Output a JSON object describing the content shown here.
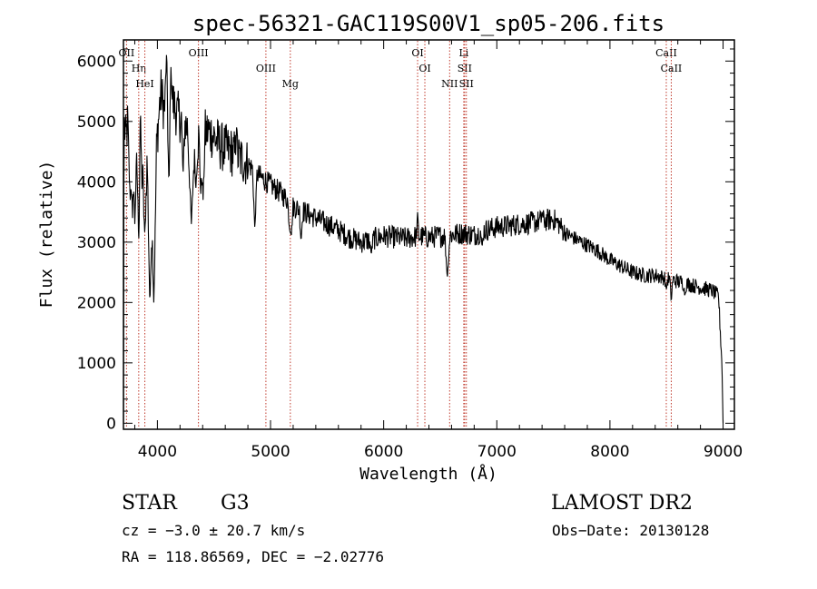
{
  "chart_data": {
    "type": "line",
    "title": "spec-56321-GAC119S00V1_sp05-206.fits",
    "xlabel": "Wavelength (Å)",
    "ylabel": "Flux (relative)",
    "xlim": [
      3700,
      9100
    ],
    "ylim": [
      -100,
      6350
    ],
    "x_ticks": [
      4000,
      5000,
      6000,
      7000,
      8000,
      9000
    ],
    "x_tick_labels": [
      "4000",
      "5000",
      "6000",
      "7000",
      "8000",
      "9000"
    ],
    "y_ticks": [
      0,
      1000,
      2000,
      3000,
      4000,
      5000,
      6000
    ],
    "y_tick_labels": [
      "0",
      "1000",
      "2000",
      "3000",
      "4000",
      "5000",
      "6000"
    ],
    "grid": false,
    "line_color": "#000000",
    "marker_color": "#c0392b",
    "spectral_lines": [
      {
        "label": "OII",
        "x": 3727
      },
      {
        "label": "Hη",
        "x": 3835
      },
      {
        "label": "HeI",
        "x": 3889
      },
      {
        "label": "OIII",
        "x": 4363
      },
      {
        "label": "OIII",
        "x": 4959
      },
      {
        "label": "Mg",
        "x": 5175
      },
      {
        "label": "OI",
        "x": 6300
      },
      {
        "label": "OI",
        "x": 6364
      },
      {
        "label": "NII",
        "x": 6583
      },
      {
        "label": "Li",
        "x": 6708
      },
      {
        "label": "SII",
        "x": 6716
      },
      {
        "label": "SII",
        "x": 6731
      },
      {
        "label": "CaII",
        "x": 8498
      },
      {
        "label": "CaII",
        "x": 8542
      }
    ],
    "continuum": [
      [
        3700,
        0
      ],
      [
        3705,
        5000
      ],
      [
        3720,
        4700
      ],
      [
        3740,
        5000
      ],
      [
        3760,
        4600
      ],
      [
        3790,
        4800
      ],
      [
        3820,
        4200
      ],
      [
        3850,
        4300
      ],
      [
        3880,
        3900
      ],
      [
        3910,
        4300
      ],
      [
        3940,
        4000
      ],
      [
        3970,
        3700
      ],
      [
        4000,
        4800
      ],
      [
        4030,
        5500
      ],
      [
        4060,
        5200
      ],
      [
        4100,
        5700
      ],
      [
        4140,
        5300
      ],
      [
        4180,
        5100
      ],
      [
        4230,
        5000
      ],
      [
        4300,
        4800
      ],
      [
        4370,
        4700
      ],
      [
        4450,
        4850
      ],
      [
        4500,
        4750
      ],
      [
        4550,
        4600
      ],
      [
        4650,
        4500
      ],
      [
        4720,
        4400
      ],
      [
        4800,
        4300
      ],
      [
        4900,
        4100
      ],
      [
        5000,
        3950
      ],
      [
        5100,
        3800
      ],
      [
        5200,
        3600
      ],
      [
        5300,
        3500
      ],
      [
        5400,
        3400
      ],
      [
        5500,
        3300
      ],
      [
        5600,
        3200
      ],
      [
        5700,
        3080
      ],
      [
        5800,
        3000
      ],
      [
        5900,
        3050
      ],
      [
        6000,
        3100
      ],
      [
        6100,
        3080
      ],
      [
        6200,
        3060
      ],
      [
        6300,
        3100
      ],
      [
        6400,
        3080
      ],
      [
        6500,
        3100
      ],
      [
        6600,
        3120
      ],
      [
        6700,
        3150
      ],
      [
        6800,
        3120
      ],
      [
        6900,
        3200
      ],
      [
        7000,
        3250
      ],
      [
        7100,
        3270
      ],
      [
        7200,
        3300
      ],
      [
        7300,
        3320
      ],
      [
        7400,
        3350
      ],
      [
        7500,
        3380
      ],
      [
        7550,
        3300
      ],
      [
        7600,
        3150
      ],
      [
        7700,
        3050
      ],
      [
        7800,
        2950
      ],
      [
        7900,
        2850
      ],
      [
        8000,
        2700
      ],
      [
        8100,
        2600
      ],
      [
        8200,
        2500
      ],
      [
        8300,
        2450
      ],
      [
        8400,
        2450
      ],
      [
        8500,
        2400
      ],
      [
        8600,
        2350
      ],
      [
        8700,
        2300
      ],
      [
        8800,
        2250
      ],
      [
        8900,
        2200
      ],
      [
        8960,
        2100
      ],
      [
        8990,
        1000
      ],
      [
        9000,
        0
      ]
    ],
    "absorption_features": [
      [
        3760,
        3700,
        90
      ],
      [
        3780,
        3400,
        60
      ],
      [
        3800,
        3300,
        70
      ],
      [
        3835,
        3000,
        60
      ],
      [
        3889,
        3100,
        70
      ],
      [
        3934,
        1900,
        90
      ],
      [
        3968,
        2000,
        90
      ],
      [
        4102,
        3900,
        80
      ],
      [
        4227,
        4100,
        60
      ],
      [
        4300,
        3300,
        130
      ],
      [
        4340,
        3900,
        70
      ],
      [
        4384,
        3800,
        70
      ],
      [
        4404,
        3700,
        70
      ],
      [
        4861,
        3200,
        80
      ],
      [
        5167,
        3300,
        70
      ],
      [
        5173,
        3200,
        70
      ],
      [
        5183,
        3100,
        70
      ],
      [
        5270,
        3000,
        60
      ],
      [
        5890,
        2800,
        70
      ],
      [
        6563,
        2400,
        90
      ],
      [
        6870,
        2900,
        50
      ],
      [
        8498,
        2200,
        50
      ],
      [
        8542,
        2000,
        50
      ],
      [
        8662,
        2100,
        50
      ]
    ],
    "emission_features": [
      [
        3850,
        5200,
        40
      ],
      [
        4080,
        6100,
        50
      ],
      [
        4120,
        5900,
        50
      ],
      [
        4700,
        4900,
        50
      ],
      [
        6300,
        3500,
        40
      ],
      [
        7400,
        3500,
        40
      ]
    ]
  },
  "footer": {
    "class_label": "STAR",
    "subclass": "G3",
    "survey": "LAMOST DR2",
    "cz": "cz = −3.0 ± 20.7 km/s",
    "obs_date": "Obs−Date: 20130128",
    "coords": "RA = 118.86569, DEC =  −2.02776"
  }
}
